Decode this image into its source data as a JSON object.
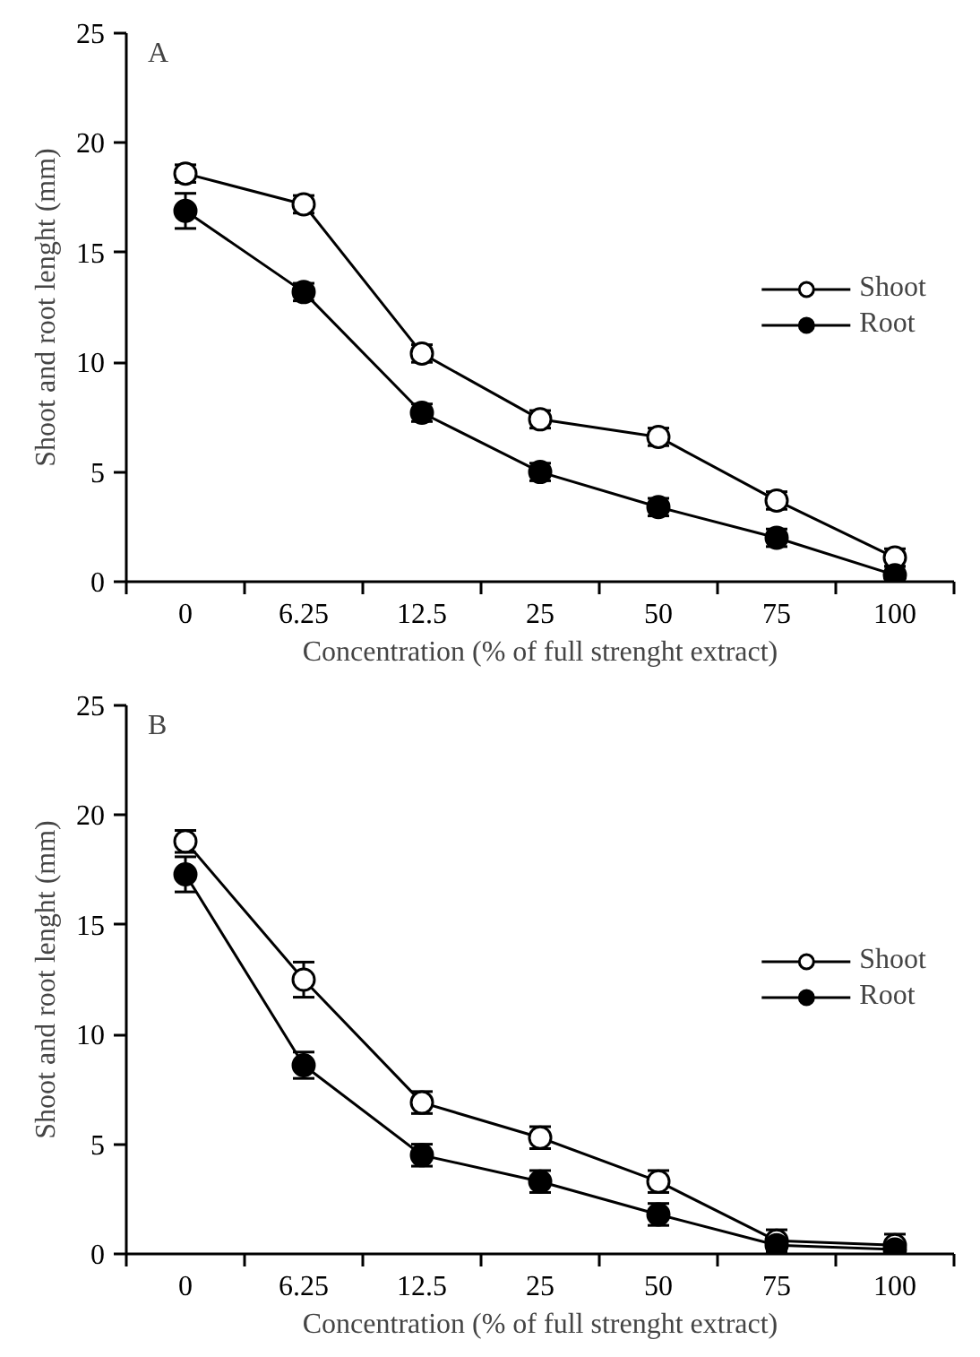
{
  "chart_data": [
    {
      "type": "line",
      "title": "A",
      "xlabel": "Concentration (% of full strenght extract)",
      "ylabel": "Shoot and root lenght (mm)",
      "categories": [
        "0",
        "6.25",
        "12.5",
        "25",
        "50",
        "75",
        "100"
      ],
      "ylim": [
        0,
        25
      ],
      "yticks": [
        0,
        5,
        10,
        15,
        20,
        25
      ],
      "grid": false,
      "legend": "right",
      "marker": "circle",
      "series": [
        {
          "name": "Shoot",
          "color": "#ffffff",
          "values": [
            18.6,
            17.2,
            10.4,
            7.4,
            6.6,
            3.7,
            1.1
          ],
          "errors": [
            0.4,
            0.4,
            0.4,
            0.4,
            0.4,
            0.4,
            0.4
          ]
        },
        {
          "name": "Root",
          "color": "#000000",
          "values": [
            16.9,
            13.2,
            7.7,
            5.0,
            3.4,
            2.0,
            0.3
          ],
          "errors": [
            0.8,
            0.4,
            0.4,
            0.4,
            0.4,
            0.4,
            0.4
          ]
        }
      ]
    },
    {
      "type": "line",
      "title": "B",
      "xlabel": "Concentration (% of full strenght extract)",
      "ylabel": "Shoot and root lenght (mm)",
      "categories": [
        "0",
        "6.25",
        "12.5",
        "25",
        "50",
        "75",
        "100"
      ],
      "ylim": [
        0,
        25
      ],
      "yticks": [
        0,
        5,
        10,
        15,
        20,
        25
      ],
      "grid": false,
      "legend": "right",
      "marker": "circle",
      "series": [
        {
          "name": "Shoot",
          "color": "#ffffff",
          "values": [
            18.8,
            12.5,
            6.9,
            5.3,
            3.3,
            0.6,
            0.4
          ],
          "errors": [
            0.5,
            0.8,
            0.5,
            0.5,
            0.5,
            0.5,
            0.5
          ]
        },
        {
          "name": "Root",
          "color": "#000000",
          "values": [
            17.3,
            8.6,
            4.5,
            3.3,
            1.8,
            0.4,
            0.2
          ],
          "errors": [
            0.8,
            0.6,
            0.5,
            0.5,
            0.5,
            0.3,
            0.4
          ]
        }
      ]
    }
  ]
}
